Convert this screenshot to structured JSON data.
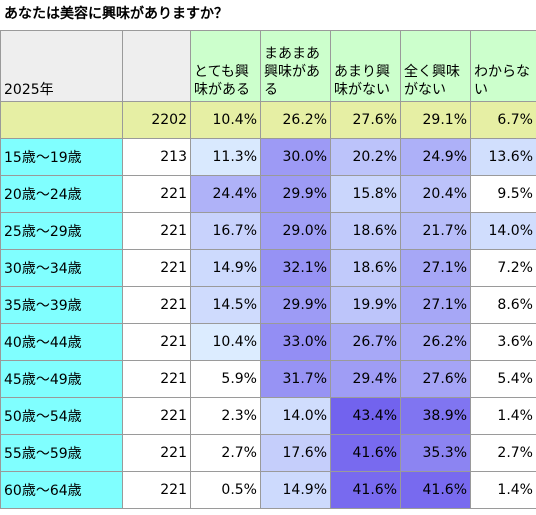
{
  "title": "あなたは美容に興味がありますか？",
  "table": {
    "header": {
      "label": "2025年",
      "columns": [
        "とても興味がある",
        "まあまあ興味がある",
        "あまり興味がない",
        "全く興味がない",
        "わからない"
      ]
    },
    "total": {
      "n": "2202",
      "values": [
        "10.4%",
        "26.2%",
        "27.6%",
        "29.1%",
        "6.7%"
      ]
    },
    "rows": [
      {
        "label": "15歳～19歳",
        "n": "213",
        "values": [
          "11.3%",
          "30.0%",
          "20.2%",
          "24.9%",
          "13.6%"
        ]
      },
      {
        "label": "20歳～24歳",
        "n": "221",
        "values": [
          "24.4%",
          "29.9%",
          "15.8%",
          "20.4%",
          "9.5%"
        ]
      },
      {
        "label": "25歳～29歳",
        "n": "221",
        "values": [
          "16.7%",
          "29.0%",
          "18.6%",
          "21.7%",
          "14.0%"
        ]
      },
      {
        "label": "30歳～34歳",
        "n": "221",
        "values": [
          "14.9%",
          "32.1%",
          "18.6%",
          "27.1%",
          "7.2%"
        ]
      },
      {
        "label": "35歳～39歳",
        "n": "221",
        "values": [
          "14.5%",
          "29.9%",
          "19.9%",
          "27.1%",
          "8.6%"
        ]
      },
      {
        "label": "40歳～44歳",
        "n": "221",
        "values": [
          "10.4%",
          "33.0%",
          "26.7%",
          "26.2%",
          "3.6%"
        ]
      },
      {
        "label": "45歳～49歳",
        "n": "221",
        "values": [
          "5.9%",
          "31.7%",
          "29.4%",
          "27.6%",
          "5.4%"
        ]
      },
      {
        "label": "50歳～54歳",
        "n": "221",
        "values": [
          "2.3%",
          "14.0%",
          "43.4%",
          "38.9%",
          "1.4%"
        ]
      },
      {
        "label": "55歳～59歳",
        "n": "221",
        "values": [
          "2.7%",
          "17.6%",
          "41.6%",
          "35.3%",
          "2.7%"
        ]
      },
      {
        "label": "60歳～64歳",
        "n": "221",
        "values": [
          "0.5%",
          "14.9%",
          "41.6%",
          "41.6%",
          "1.4%"
        ]
      }
    ]
  }
}
